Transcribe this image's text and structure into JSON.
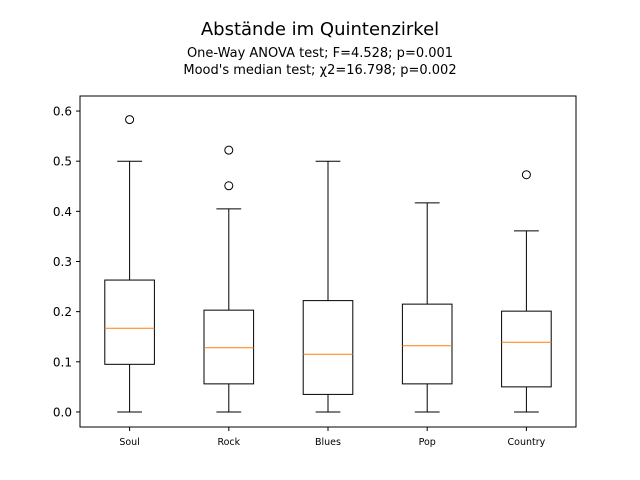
{
  "chart_data": {
    "type": "boxplot",
    "title": "Abstände im Quintenzirkel",
    "subtitle_lines": [
      "One-Way ANOVA test; F=4.528; p=0.001",
      "Mood's median test; χ2=16.798; p=0.002"
    ],
    "xlabel": "",
    "ylabel": "",
    "ylim": [
      -0.03,
      0.63
    ],
    "yticks": [
      0.0,
      0.1,
      0.2,
      0.3,
      0.4,
      0.5,
      0.6
    ],
    "ytick_labels": [
      "0.0",
      "0.1",
      "0.2",
      "0.3",
      "0.4",
      "0.5",
      "0.6"
    ],
    "categories": [
      "Soul",
      "Rock",
      "Blues",
      "Pop",
      "Country"
    ],
    "grid": false,
    "median_color": "#ff7f0e",
    "box_color": "#000000",
    "boxes": [
      {
        "category": "Soul",
        "whisker_low": 0.0,
        "q1": 0.095,
        "median": 0.167,
        "q3": 0.263,
        "whisker_high": 0.5,
        "outliers": [
          0.583
        ]
      },
      {
        "category": "Rock",
        "whisker_low": 0.0,
        "q1": 0.056,
        "median": 0.128,
        "q3": 0.203,
        "whisker_high": 0.405,
        "outliers": [
          0.522,
          0.451
        ]
      },
      {
        "category": "Blues",
        "whisker_low": 0.0,
        "q1": 0.035,
        "median": 0.115,
        "q3": 0.222,
        "whisker_high": 0.5,
        "outliers": []
      },
      {
        "category": "Pop",
        "whisker_low": 0.0,
        "q1": 0.056,
        "median": 0.132,
        "q3": 0.215,
        "whisker_high": 0.417,
        "outliers": []
      },
      {
        "category": "Country",
        "whisker_low": 0.0,
        "q1": 0.05,
        "median": 0.139,
        "q3": 0.201,
        "whisker_high": 0.361,
        "outliers": [
          0.473
        ]
      }
    ]
  }
}
